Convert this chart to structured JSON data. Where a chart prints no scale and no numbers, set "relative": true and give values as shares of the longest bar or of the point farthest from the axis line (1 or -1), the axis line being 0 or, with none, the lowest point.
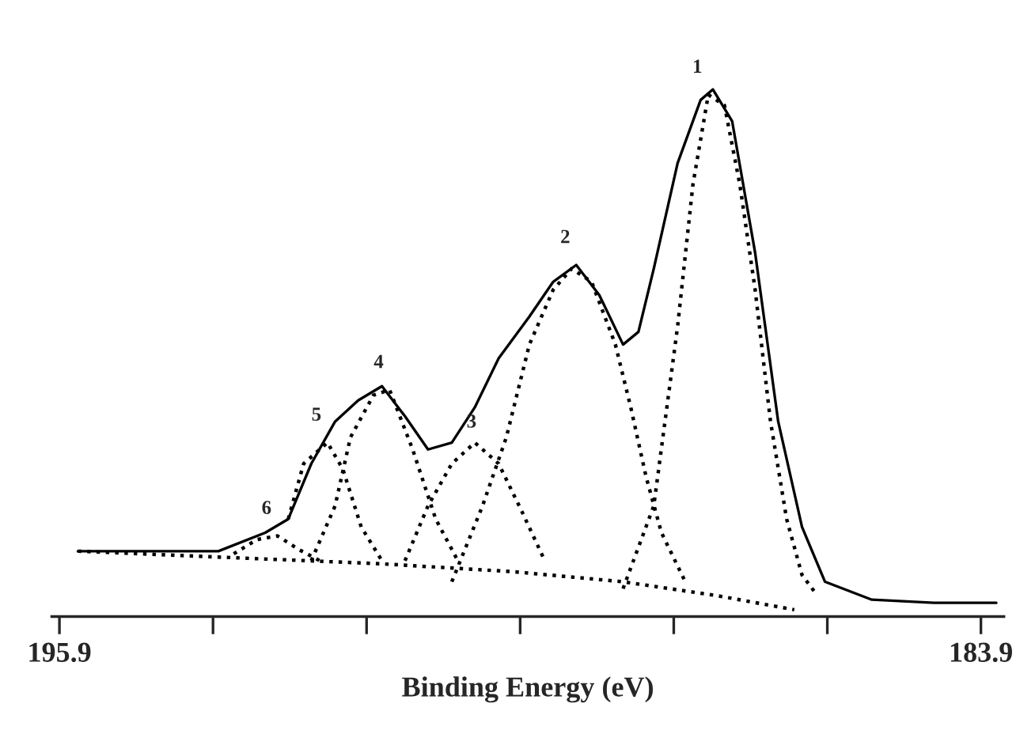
{
  "chart_data": {
    "type": "line",
    "relative": true,
    "xlabel": "Binding Energy (eV)",
    "xlim": [
      196.0,
      183.6
    ],
    "xticks": [
      {
        "value": 195.9,
        "label": "195.9"
      },
      {
        "value": 193.9,
        "label": null
      },
      {
        "value": 191.9,
        "label": null
      },
      {
        "value": 189.9,
        "label": null
      },
      {
        "value": 187.9,
        "label": null
      },
      {
        "value": 185.9,
        "label": null
      },
      {
        "value": 183.9,
        "label": "183.9"
      }
    ],
    "grid": false,
    "legend": false,
    "series": [
      {
        "color": "#000000",
        "line_style": "solid",
        "x": [
          195.66,
          193.83,
          193.22,
          192.92,
          192.62,
          192.31,
          192.01,
          191.7,
          191.4,
          191.1,
          190.79,
          190.49,
          190.18,
          189.78,
          189.47,
          189.17,
          188.87,
          188.56,
          188.36,
          188.16,
          187.85,
          187.55,
          187.39,
          187.14,
          186.84,
          186.54,
          186.23,
          185.93,
          185.32,
          184.51,
          183.7
        ],
        "values": [
          0.124,
          0.124,
          0.159,
          0.185,
          0.29,
          0.37,
          0.41,
          0.437,
          0.38,
          0.317,
          0.33,
          0.397,
          0.49,
          0.569,
          0.635,
          0.667,
          0.61,
          0.516,
          0.54,
          0.66,
          0.86,
          0.98,
          1.0,
          0.94,
          0.69,
          0.37,
          0.17,
          0.066,
          0.032,
          0.026,
          0.026
        ]
      },
      {
        "color": "#000000",
        "line_style": "dotted",
        "x": [
          188.56,
          188.16,
          187.85,
          187.65,
          187.45,
          187.24,
          187.04,
          186.84,
          186.64,
          186.43,
          186.23,
          186.03
        ],
        "values": [
          0.053,
          0.21,
          0.55,
          0.82,
          0.99,
          0.97,
          0.82,
          0.62,
          0.37,
          0.185,
          0.079,
          0.04
        ]
      },
      {
        "color": "#000000",
        "line_style": "dotted",
        "x": [
          190.79,
          190.39,
          190.08,
          189.78,
          189.47,
          189.23,
          188.97,
          188.66,
          188.46,
          188.26,
          188.06,
          187.75
        ],
        "values": [
          0.066,
          0.21,
          0.34,
          0.516,
          0.62,
          0.66,
          0.635,
          0.516,
          0.397,
          0.265,
          0.159,
          0.066
        ]
      },
      {
        "color": "#000000",
        "line_style": "dotted",
        "x": [
          191.4,
          191.1,
          190.79,
          190.49,
          190.18,
          189.88,
          189.58
        ],
        "values": [
          0.106,
          0.21,
          0.29,
          0.33,
          0.29,
          0.2,
          0.106
        ]
      },
      {
        "color": "#000000",
        "line_style": "dotted",
        "x": [
          192.62,
          192.31,
          192.11,
          191.81,
          191.6,
          191.3,
          191.0,
          190.69
        ],
        "values": [
          0.106,
          0.21,
          0.34,
          0.42,
          0.43,
          0.317,
          0.185,
          0.1
        ]
      },
      {
        "color": "#000000",
        "line_style": "dotted",
        "x": [
          192.92,
          192.72,
          192.41,
          192.21,
          191.97,
          191.7
        ],
        "values": [
          0.185,
          0.29,
          0.33,
          0.28,
          0.17,
          0.106
        ]
      },
      {
        "color": "#000000",
        "line_style": "dotted",
        "x": [
          193.63,
          193.33,
          193.06,
          192.78,
          192.51
        ],
        "values": [
          0.119,
          0.146,
          0.153,
          0.127,
          0.106
        ]
      },
      {
        "color": "#000000",
        "line_style": "dotted",
        "x": [
          195.66,
          191.7,
          189.98,
          188.56,
          187.35,
          186.33
        ],
        "values": [
          0.124,
          0.1,
          0.085,
          0.066,
          0.04,
          0.013
        ]
      }
    ],
    "annotations": [
      {
        "text": "1",
        "x": 187.45,
        "y": 0.99
      },
      {
        "text": "2",
        "x": 189.17,
        "y": 0.667
      },
      {
        "text": "3",
        "x": 190.39,
        "y": 0.317
      },
      {
        "text": "4",
        "x": 191.6,
        "y": 0.43
      },
      {
        "text": "5",
        "x": 192.41,
        "y": 0.33
      },
      {
        "text": "6",
        "x": 193.06,
        "y": 0.153
      }
    ]
  }
}
